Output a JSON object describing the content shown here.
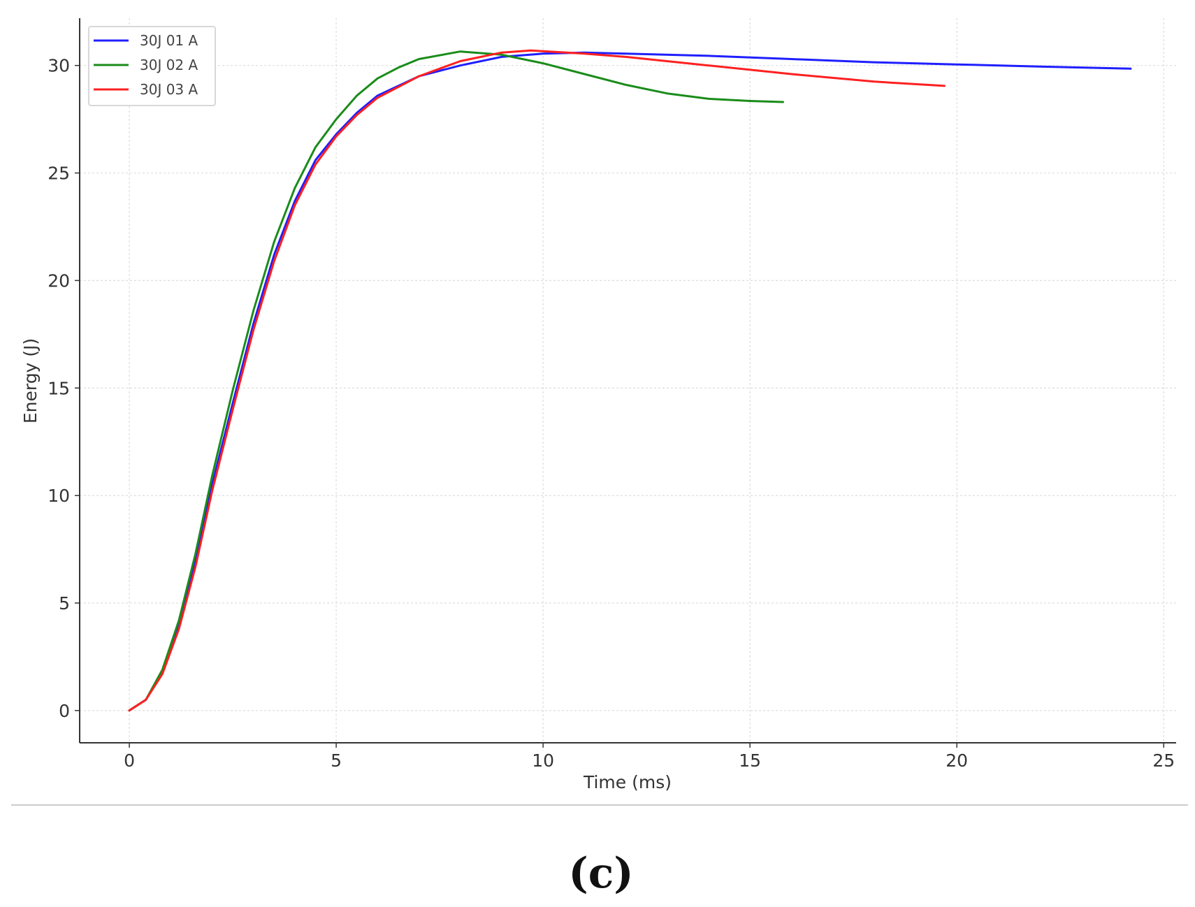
{
  "chart_data": {
    "type": "line",
    "xlabel": "Time (ms)",
    "ylabel": "Energy (J)",
    "xlim": [
      -1.2,
      25.3
    ],
    "ylim": [
      -1.5,
      32.2
    ],
    "xticks": [
      0,
      5,
      10,
      15,
      20,
      25
    ],
    "yticks": [
      0,
      5,
      10,
      15,
      20,
      25,
      30
    ],
    "grid": true,
    "legend_position": "top-left",
    "series": [
      {
        "name": "30J 01 A",
        "color": "#1f1fff",
        "points": [
          [
            0,
            0
          ],
          [
            0.4,
            0.5
          ],
          [
            0.8,
            1.8
          ],
          [
            1.2,
            4.0
          ],
          [
            1.6,
            7.0
          ],
          [
            2.0,
            10.5
          ],
          [
            2.5,
            14.3
          ],
          [
            3.0,
            18.0
          ],
          [
            3.5,
            21.2
          ],
          [
            4.0,
            23.7
          ],
          [
            4.5,
            25.6
          ],
          [
            5.0,
            26.8
          ],
          [
            5.5,
            27.8
          ],
          [
            6.0,
            28.6
          ],
          [
            7.0,
            29.5
          ],
          [
            8.0,
            30.0
          ],
          [
            9.0,
            30.4
          ],
          [
            10.0,
            30.55
          ],
          [
            11.0,
            30.6
          ],
          [
            12.0,
            30.55
          ],
          [
            14.0,
            30.45
          ],
          [
            16.0,
            30.3
          ],
          [
            18.0,
            30.15
          ],
          [
            20.0,
            30.05
          ],
          [
            22.0,
            29.95
          ],
          [
            24.2,
            29.85
          ]
        ]
      },
      {
        "name": "30J 02 A",
        "color": "#1a8c1a",
        "points": [
          [
            0,
            0
          ],
          [
            0.4,
            0.5
          ],
          [
            0.8,
            1.9
          ],
          [
            1.2,
            4.2
          ],
          [
            1.6,
            7.3
          ],
          [
            2.0,
            10.9
          ],
          [
            2.5,
            14.9
          ],
          [
            3.0,
            18.6
          ],
          [
            3.5,
            21.8
          ],
          [
            4.0,
            24.3
          ],
          [
            4.5,
            26.2
          ],
          [
            5.0,
            27.5
          ],
          [
            5.5,
            28.6
          ],
          [
            6.0,
            29.4
          ],
          [
            6.5,
            29.9
          ],
          [
            7.0,
            30.3
          ],
          [
            8.0,
            30.65
          ],
          [
            9.0,
            30.5
          ],
          [
            10.0,
            30.1
          ],
          [
            11.0,
            29.6
          ],
          [
            12.0,
            29.1
          ],
          [
            13.0,
            28.7
          ],
          [
            14.0,
            28.45
          ],
          [
            15.0,
            28.35
          ],
          [
            15.8,
            28.3
          ]
        ]
      },
      {
        "name": "30J 03 A",
        "color": "#ff2020",
        "points": [
          [
            0,
            0
          ],
          [
            0.4,
            0.5
          ],
          [
            0.8,
            1.7
          ],
          [
            1.2,
            3.8
          ],
          [
            1.6,
            6.7
          ],
          [
            2.0,
            10.2
          ],
          [
            2.5,
            14.0
          ],
          [
            3.0,
            17.7
          ],
          [
            3.5,
            20.9
          ],
          [
            4.0,
            23.5
          ],
          [
            4.5,
            25.4
          ],
          [
            5.0,
            26.7
          ],
          [
            5.5,
            27.7
          ],
          [
            6.0,
            28.5
          ],
          [
            7.0,
            29.5
          ],
          [
            8.0,
            30.2
          ],
          [
            9.0,
            30.6
          ],
          [
            9.7,
            30.7
          ],
          [
            11.0,
            30.55
          ],
          [
            12.0,
            30.4
          ],
          [
            14.0,
            30.0
          ],
          [
            16.0,
            29.6
          ],
          [
            18.0,
            29.25
          ],
          [
            19.7,
            29.05
          ]
        ]
      }
    ]
  },
  "caption": "(c)"
}
